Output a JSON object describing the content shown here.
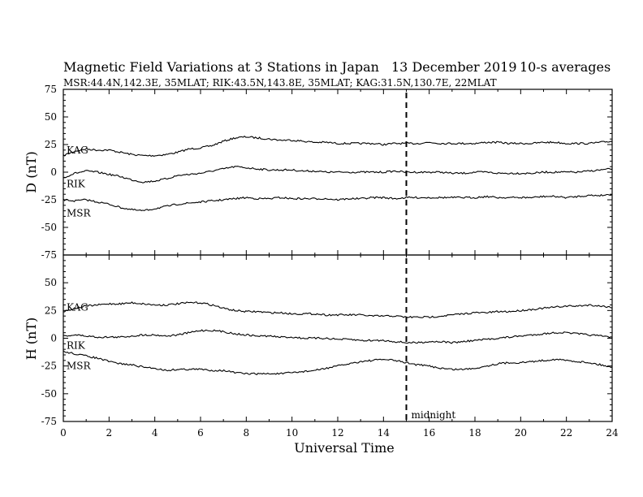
{
  "header": {
    "title": "Magnetic Field Variations at 3 Stations in Japan",
    "date": "13 December 2019",
    "averaging": "10-s averages",
    "stations_line": "MSR:44.4N,142.3E, 35MLAT;  RIK:43.5N,143.8E, 35MLAT;  KAG:31.5N,130.7E, 22MLAT"
  },
  "midnight_label": "midnight",
  "chart_data": [
    {
      "type": "line",
      "panel": "top",
      "ylabel": "D (nT)",
      "ylim": [
        -75,
        75
      ],
      "yticks": [
        -75,
        -50,
        -25,
        0,
        25,
        50,
        75
      ],
      "xlim": [
        0,
        24
      ],
      "x": [
        0,
        0.5,
        1,
        1.5,
        2,
        2.5,
        3,
        3.5,
        4,
        4.5,
        5,
        5.5,
        6,
        6.5,
        7,
        7.5,
        8,
        8.5,
        9,
        9.5,
        10,
        10.5,
        11,
        11.5,
        12,
        12.5,
        13,
        13.5,
        14,
        14.5,
        15,
        15.5,
        16,
        16.5,
        17,
        17.5,
        18,
        18.5,
        19,
        19.5,
        20,
        20.5,
        21,
        21.5,
        22,
        22.5,
        23,
        23.5,
        24
      ],
      "series": [
        {
          "name": "KAG",
          "values": [
            15,
            19,
            21,
            20,
            20,
            18,
            16,
            15,
            15,
            16,
            18,
            21,
            22,
            24,
            28,
            31,
            32,
            31,
            30,
            29,
            29,
            28,
            27,
            27,
            26,
            26,
            26,
            26,
            25,
            26,
            26,
            26,
            27,
            26,
            26,
            26,
            26,
            27,
            27,
            26,
            26,
            26,
            27,
            27,
            26,
            26,
            26,
            27,
            28
          ]
        },
        {
          "name": "RIK",
          "values": [
            -5,
            -1,
            1,
            0,
            -2,
            -4,
            -7,
            -9,
            -8,
            -6,
            -3,
            -2,
            -1,
            1,
            3,
            5,
            4,
            3,
            2,
            2,
            2,
            1,
            1,
            0,
            0,
            0,
            0,
            0,
            0,
            1,
            0,
            0,
            0,
            0,
            -1,
            -1,
            0,
            0,
            -1,
            -1,
            -1,
            -1,
            0,
            0,
            0,
            0,
            1,
            2,
            3
          ]
        },
        {
          "name": "MSR",
          "values": [
            -25,
            -26,
            -25,
            -27,
            -29,
            -32,
            -34,
            -35,
            -33,
            -31,
            -29,
            -28,
            -27,
            -26,
            -25,
            -24,
            -23,
            -24,
            -24,
            -23,
            -24,
            -24,
            -24,
            -24,
            -25,
            -24,
            -24,
            -23,
            -23,
            -24,
            -23,
            -23,
            -23,
            -23,
            -23,
            -23,
            -23,
            -22,
            -23,
            -23,
            -23,
            -23,
            -22,
            -22,
            -23,
            -22,
            -21,
            -21,
            -20
          ]
        }
      ]
    },
    {
      "type": "line",
      "panel": "bottom",
      "ylabel": "H (nT)",
      "ylim": [
        -75,
        75
      ],
      "yticks": [
        -75,
        -50,
        -25,
        0,
        25,
        50,
        75
      ],
      "xlabel": "Universal Time",
      "xlim": [
        0,
        24
      ],
      "xticks": [
        0,
        2,
        4,
        6,
        8,
        10,
        12,
        14,
        16,
        18,
        20,
        22,
        24
      ],
      "x": [
        0,
        0.5,
        1,
        1.5,
        2,
        2.5,
        3,
        3.5,
        4,
        4.5,
        5,
        5.5,
        6,
        6.5,
        7,
        7.5,
        8,
        8.5,
        9,
        9.5,
        10,
        10.5,
        11,
        11.5,
        12,
        12.5,
        13,
        13.5,
        14,
        14.5,
        15,
        15.5,
        16,
        16.5,
        17,
        17.5,
        18,
        18.5,
        19,
        19.5,
        20,
        20.5,
        21,
        21.5,
        22,
        22.5,
        23,
        23.5,
        24
      ],
      "series": [
        {
          "name": "KAG",
          "values": [
            24,
            27,
            29,
            30,
            31,
            31,
            32,
            31,
            30,
            30,
            31,
            32,
            32,
            30,
            27,
            25,
            24,
            24,
            23,
            23,
            22,
            22,
            22,
            21,
            21,
            21,
            21,
            20,
            20,
            20,
            19,
            19,
            19,
            20,
            21,
            22,
            23,
            23,
            24,
            24,
            25,
            26,
            27,
            28,
            29,
            29,
            30,
            29,
            28
          ]
        },
        {
          "name": "RIK",
          "values": [
            2,
            3,
            2,
            1,
            1,
            1,
            2,
            3,
            3,
            2,
            3,
            5,
            7,
            7,
            6,
            4,
            3,
            2,
            2,
            1,
            1,
            0,
            0,
            0,
            -1,
            -1,
            -2,
            -2,
            -2,
            -3,
            -4,
            -4,
            -3,
            -3,
            -4,
            -3,
            -2,
            -1,
            0,
            1,
            2,
            3,
            4,
            5,
            5,
            4,
            3,
            2,
            1
          ]
        },
        {
          "name": "MSR",
          "values": [
            -12,
            -14,
            -16,
            -18,
            -21,
            -23,
            -24,
            -26,
            -27,
            -29,
            -28,
            -28,
            -28,
            -29,
            -29,
            -31,
            -32,
            -32,
            -32,
            -32,
            -31,
            -30,
            -29,
            -27,
            -25,
            -23,
            -21,
            -20,
            -19,
            -20,
            -22,
            -24,
            -25,
            -27,
            -28,
            -28,
            -27,
            -25,
            -23,
            -22,
            -22,
            -21,
            -20,
            -19,
            -20,
            -21,
            -22,
            -24,
            -26
          ]
        }
      ]
    }
  ],
  "midnight_ut": 15
}
